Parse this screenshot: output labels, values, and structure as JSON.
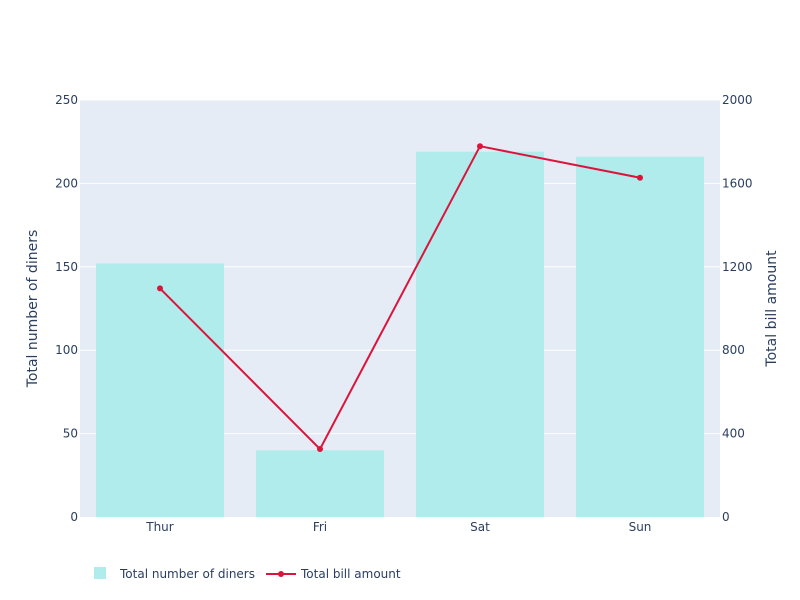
{
  "chart_data": {
    "type": "bar",
    "categories": [
      "Thur",
      "Fri",
      "Sat",
      "Sun"
    ],
    "series": [
      {
        "name": "Total number of diners",
        "type": "bar",
        "axis": "left",
        "values": [
          152,
          40,
          219,
          216
        ],
        "color": "#b0ecec"
      },
      {
        "name": "Total bill amount",
        "type": "line",
        "axis": "right",
        "values": [
          1096.33,
          325.88,
          1778.4,
          1627.16
        ],
        "color": "#dc143c"
      }
    ],
    "y_left": {
      "label": "Total number of diners",
      "range": [
        0,
        250
      ],
      "ticks": [
        "0",
        "50",
        "100",
        "150",
        "200",
        "250"
      ]
    },
    "y_right": {
      "label": "Total bill amount",
      "range": [
        0,
        2000
      ],
      "ticks": [
        "0",
        "400",
        "800",
        "1200",
        "1600",
        "2000"
      ]
    },
    "grid": true,
    "legend_position": "bottom-left",
    "plot_background": "#e5ecf6",
    "text_color": "#2a3f5f"
  }
}
